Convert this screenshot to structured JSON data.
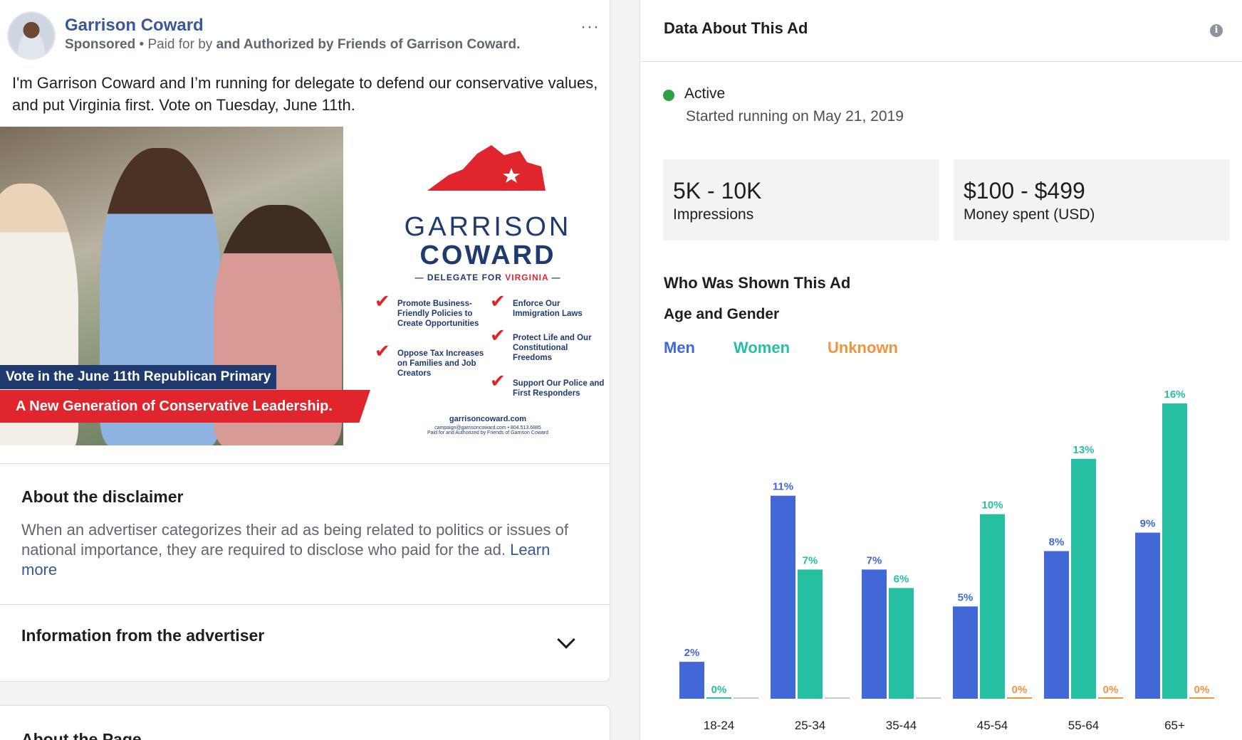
{
  "post": {
    "page_name": "Garrison Coward",
    "sponsored": "Sponsored",
    "paid_for_prefix": " • Paid for by ",
    "paid_for_by": "and Authorized by Friends of Garrison Coward.",
    "more_label": "···",
    "text": "I'm Garrison Coward and I’m running for delegate to defend our conservative values, and put Virginia first. Vote on Tuesday, June 11th."
  },
  "creative": {
    "banner_top": "Vote in the June 11th Republican Primary",
    "banner_bottom": "A New Generation of Conservative Leadership.",
    "logo_line1": "GARRISON",
    "logo_line2": "COWARD",
    "logo_sub_prefix": "— DELEGATE FOR ",
    "logo_sub_state": "VIRGINIA",
    "logo_sub_suffix": " —",
    "planks": [
      "Promote Business-Friendly Policies to Create Opportunities",
      "Oppose Tax Increases on Families and Job Creators",
      "Enforce Our Immigration Laws",
      "Protect Life and Our Constitutional Freedoms",
      "Support Our Police and First Responders"
    ],
    "url": "garrisoncoward.com",
    "contact": "campaign@garrisoncoward.com • 804.513.6885",
    "fine_print": "Paid for and Authorized by Friends of Garrison Coward",
    "colors": {
      "navy": "#1f3a6e",
      "red": "#e0252d"
    }
  },
  "disclaimer": {
    "title": "About the disclaimer",
    "body": "When an advertiser categorizes their ad as being related to politics or issues of national importance, they are required to disclose who paid for the ad. ",
    "link": "Learn more"
  },
  "advertiser_info": {
    "title": "Information from the advertiser"
  },
  "about_page": {
    "title": "About the Page"
  },
  "ad_data": {
    "title": "Data About This Ad",
    "status": "Active",
    "status_color": "#2ea043",
    "started": "Started running on May 21, 2019",
    "impressions_value": "5K - 10K",
    "impressions_label": "Impressions",
    "spend_value": "$100 - $499",
    "spend_label": "Money spent (USD)",
    "who_title": "Who Was Shown This Ad",
    "age_gender_title": "Age and Gender"
  },
  "chart_data": {
    "type": "bar",
    "categories": [
      "18-24",
      "25-34",
      "35-44",
      "45-54",
      "55-64",
      "65+"
    ],
    "series": [
      {
        "name": "Men",
        "color": "#4267d6",
        "values": [
          2,
          11,
          7,
          5,
          8,
          9
        ],
        "labels": [
          "2%",
          "11%",
          "7%",
          "5%",
          "8%",
          "9%"
        ]
      },
      {
        "name": "Women",
        "color": "#27bfa3",
        "values": [
          0,
          7,
          6,
          10,
          13,
          16
        ],
        "labels": [
          "0%",
          "7%",
          "6%",
          "10%",
          "13%",
          "16%"
        ]
      },
      {
        "name": "Unknown",
        "color": "#f5923e",
        "values": [
          0,
          0,
          0,
          0,
          0,
          0
        ],
        "labels": [
          "",
          "",
          "",
          "0%",
          "0%",
          "0%"
        ]
      }
    ],
    "legend": "top-left",
    "grid": false
  }
}
